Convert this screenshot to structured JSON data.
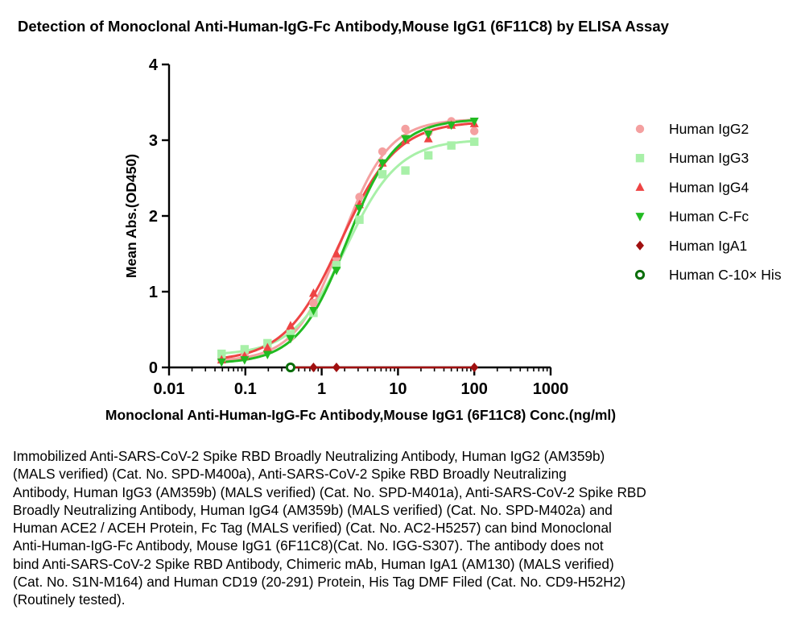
{
  "title": "Detection of  Monoclonal Anti-Human-IgG-Fc Antibody,Mouse IgG1 (6F11C8) by ELISA Assay",
  "caption": "Immobilized Anti-SARS-CoV-2 Spike RBD Broadly Neutralizing Antibody, Human IgG2 (AM359b)\n(MALS verified) (Cat. No. SPD-M400a), Anti-SARS-CoV-2 Spike RBD Broadly Neutralizing\nAntibody, Human IgG3 (AM359b) (MALS verified) (Cat. No. SPD-M401a), Anti-SARS-CoV-2 Spike RBD\nBroadly Neutralizing Antibody, Human IgG4 (AM359b) (MALS verified) (Cat. No. SPD-M402a) and\nHuman ACE2 / ACEH Protein, Fc Tag (MALS verified) (Cat. No. AC2-H5257) can bind Monoclonal\nAnti-Human-IgG-Fc Antibody, Mouse IgG1 (6F11C8)(Cat. No. IGG-S307). The antibody does not\nbind Anti-SARS-CoV-2 Spike RBD Antibody, Chimeric mAb, Human IgA1 (AM130) (MALS verified)\n(Cat. No. S1N-M164) and Human CD19 (20-291) Protein, His Tag DMF Filed (Cat. No. CD9-H52H2)\n(Routinely tested).",
  "chart_data": {
    "type": "scatter",
    "xlabel": "Monoclonal Anti-Human-IgG-Fc Antibody,Mouse IgG1 (6F11C8) Conc.(ng/ml)",
    "ylabel": "Mean Abs.(OD450)",
    "xscale": "log",
    "xlim": [
      0.01,
      1000
    ],
    "ylim": [
      0,
      4
    ],
    "xticks": [
      0.01,
      0.1,
      1,
      10,
      100,
      1000
    ],
    "xtick_labels": [
      "0.01",
      "0.1",
      "1",
      "10",
      "100",
      "1000"
    ],
    "yticks": [
      0,
      1,
      2,
      3,
      4
    ],
    "ytick_labels": [
      "0",
      "1",
      "2",
      "3",
      "4"
    ],
    "grid": false,
    "legend_position": "right",
    "series": [
      {
        "name": "Human IgG2",
        "color": "#f4a0a0",
        "marker": "circle",
        "fit": true,
        "x": [
          0.0488,
          0.0977,
          0.195,
          0.391,
          0.781,
          1.5625,
          3.125,
          6.25,
          12.5,
          25,
          50,
          100
        ],
        "y": [
          0.1,
          0.15,
          0.27,
          0.4,
          0.85,
          1.45,
          2.25,
          2.85,
          3.15,
          3.1,
          3.25,
          3.12
        ]
      },
      {
        "name": "Human IgG3",
        "color": "#a8f0a8",
        "marker": "square",
        "fit": true,
        "x": [
          0.0488,
          0.0977,
          0.195,
          0.391,
          0.781,
          1.5625,
          3.125,
          6.25,
          12.5,
          25,
          50,
          100
        ],
        "y": [
          0.18,
          0.24,
          0.32,
          0.44,
          0.72,
          1.35,
          1.95,
          2.55,
          2.6,
          2.8,
          2.93,
          2.98
        ]
      },
      {
        "name": "Human IgG4",
        "color": "#ee4444",
        "marker": "triangle-up",
        "fit": true,
        "x": [
          0.0488,
          0.0977,
          0.195,
          0.391,
          0.781,
          1.5625,
          3.125,
          6.25,
          12.5,
          25,
          50,
          100
        ],
        "y": [
          0.1,
          0.15,
          0.26,
          0.55,
          0.98,
          1.5,
          2.15,
          2.7,
          3.0,
          3.02,
          3.2,
          3.22
        ]
      },
      {
        "name": "Human C-Fc",
        "color": "#22bb22",
        "marker": "triangle-down",
        "fit": true,
        "x": [
          0.0488,
          0.0977,
          0.195,
          0.391,
          0.781,
          1.5625,
          3.125,
          6.25,
          12.5,
          25,
          50,
          100
        ],
        "y": [
          0.07,
          0.1,
          0.17,
          0.38,
          0.75,
          1.28,
          2.1,
          2.7,
          3.02,
          3.08,
          3.2,
          3.25
        ]
      },
      {
        "name": "Human IgA1",
        "color": "#a01010",
        "marker": "diamond",
        "fit": false,
        "x": [
          0.391,
          0.781,
          1.5625,
          100
        ],
        "y": [
          0.0,
          0.0,
          0.0,
          0.0
        ]
      },
      {
        "name": "Human C-10× His",
        "color": "#0a6e0a",
        "marker": "ring",
        "fit": false,
        "x": [
          0.391
        ],
        "y": [
          0.0
        ]
      }
    ]
  }
}
